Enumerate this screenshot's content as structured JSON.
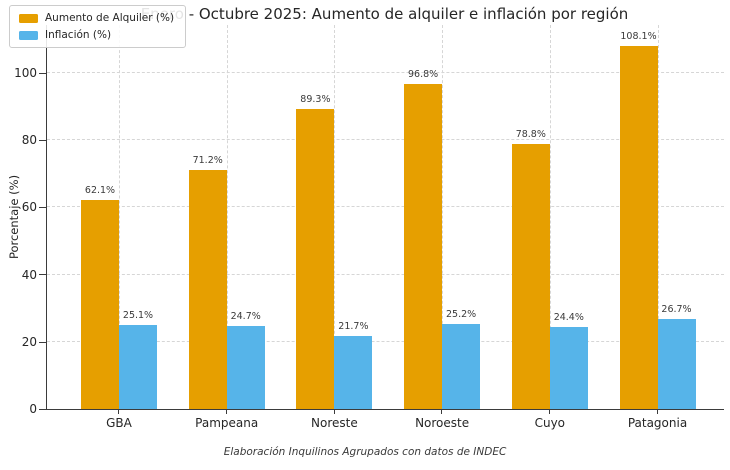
{
  "chart_data": {
    "type": "bar",
    "title": "Enero - Octubre 2025: Aumento de alquiler e inflación por región",
    "xlabel": "",
    "ylabel": "Porcentaje (%)",
    "categories": [
      "GBA",
      "Pampeana",
      "Noreste",
      "Noroeste",
      "Cuyo",
      "Patagonia"
    ],
    "series": [
      {
        "name": "Aumento de Alquiler (%)",
        "color": "#E69F00",
        "values": [
          62.1,
          71.2,
          89.3,
          96.8,
          78.8,
          108.1
        ]
      },
      {
        "name": "Inflación (%)",
        "color": "#56B4E9",
        "values": [
          25.1,
          24.7,
          21.7,
          25.2,
          24.4,
          26.7
        ]
      }
    ],
    "value_label_suffix": "%",
    "yticks": [
      0,
      20,
      40,
      60,
      80,
      100
    ],
    "ylim": [
      0,
      114.3
    ],
    "grid": "both, dashed light gray",
    "legend_position": "upper left"
  },
  "footer": {
    "caption": "Elaboración Inquilinos Agrupados con datos de INDEC"
  },
  "colors": {
    "alquiler_orange": "#E69F00",
    "inflacion_blue": "#56B4E9",
    "grid": "#d6d6d6",
    "spine": "#3b3b3b",
    "text": "#262626"
  }
}
